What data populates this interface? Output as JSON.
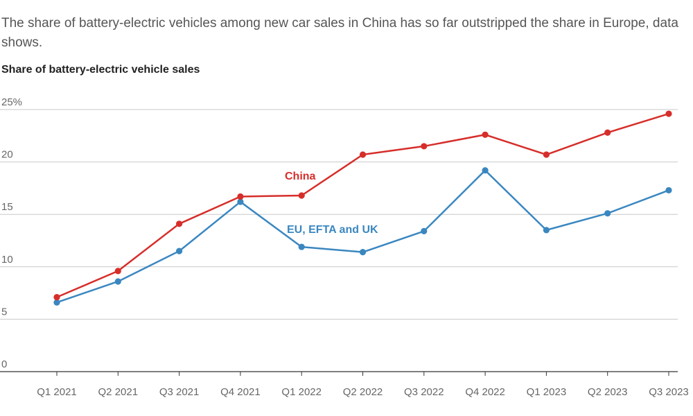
{
  "subtitle": "The share of battery-electric vehicles among new car sales in China has so far outstripped the share in Europe, data shows.",
  "chart_data": {
    "type": "line",
    "title": "Share of battery-electric vehicle sales",
    "xlabel": "",
    "ylabel": "",
    "categories": [
      "Q1 2021",
      "Q2 2021",
      "Q3 2021",
      "Q4 2021",
      "Q1 2022",
      "Q2 2022",
      "Q3 2022",
      "Q4 2022",
      "Q1 2023",
      "Q2 2023",
      "Q3 2023"
    ],
    "ylim": [
      0,
      25
    ],
    "yticks": [
      "0",
      "5",
      "10",
      "15",
      "20",
      "25%"
    ],
    "grid": true,
    "series": [
      {
        "name": "China",
        "color": "#d62e2a",
        "values": [
          7.1,
          9.6,
          14.1,
          16.7,
          16.8,
          20.7,
          21.5,
          22.6,
          20.7,
          22.8,
          24.6
        ]
      },
      {
        "name": "EU, EFTA and UK",
        "color": "#3a87c0",
        "values": [
          6.6,
          8.6,
          11.5,
          16.2,
          11.9,
          11.4,
          13.4,
          19.2,
          13.5,
          15.1,
          17.3
        ]
      }
    ]
  }
}
